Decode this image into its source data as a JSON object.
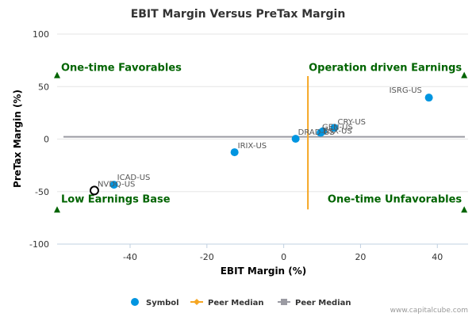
{
  "chart_data": {
    "type": "scatter",
    "title": "EBIT Margin Versus PreTax Margin",
    "xlabel": "EBIT Margin (%)",
    "ylabel": "PreTax Margin (%)",
    "xlim": [
      -59,
      48
    ],
    "ylim": [
      -100,
      100
    ],
    "xticks": [
      -40,
      -20,
      0,
      20,
      40
    ],
    "yticks": [
      100,
      50,
      0,
      -50,
      -100
    ],
    "points": [
      {
        "label": "ISRG-US",
        "x": 37.8,
        "y": 39.5,
        "highlight": false
      },
      {
        "label": "CRY-US",
        "x": 13.2,
        "y": 10.8,
        "highlight": false
      },
      {
        "label": "GEN-US",
        "x": 10.2,
        "y": 7.5,
        "highlight": false
      },
      {
        "label": "BSX-US",
        "x": 9.6,
        "y": 6.0,
        "highlight": false
      },
      {
        "label": "DRAD-US",
        "x": 3.1,
        "y": 0.3,
        "highlight": false
      },
      {
        "label": "IRIX-US",
        "x": -12.8,
        "y": -12.5,
        "highlight": false
      },
      {
        "label": "ICAD-US",
        "x": -44.2,
        "y": -43.5,
        "highlight": false
      },
      {
        "label": "NVDQ-US",
        "x": -49.3,
        "y": -49.0,
        "highlight": true
      }
    ],
    "peer_median_x": 6.3,
    "peer_median_x_yrange": [
      -67,
      60
    ],
    "peer_median_y": 2.2,
    "quadrants": [
      {
        "label": "One-time Favorables",
        "corner": "top-left",
        "marker_x": -59,
        "marker_y": 61
      },
      {
        "label": "Operation driven Earnings",
        "corner": "top-right",
        "marker_x": 47,
        "marker_y": 61
      },
      {
        "label": "Low Earnings Base",
        "corner": "bottom-left",
        "marker_x": -59,
        "marker_y": -67
      },
      {
        "label": "One-time Unfavorables",
        "corner": "bottom-right",
        "marker_x": 47,
        "marker_y": -67
      }
    ],
    "legend": [
      {
        "label": "Symbol",
        "kind": "dot"
      },
      {
        "label": "Peer Median",
        "kind": "orange-line"
      },
      {
        "label": "Peer Median",
        "kind": "gray-line"
      }
    ],
    "colors": {
      "point": "#0095e0",
      "highlight_stroke": "#000000",
      "median_x": "#f5a623",
      "median_y": "#9b9ba3",
      "quadrant": "#006400"
    },
    "credit": "www.capitalcube.com"
  }
}
